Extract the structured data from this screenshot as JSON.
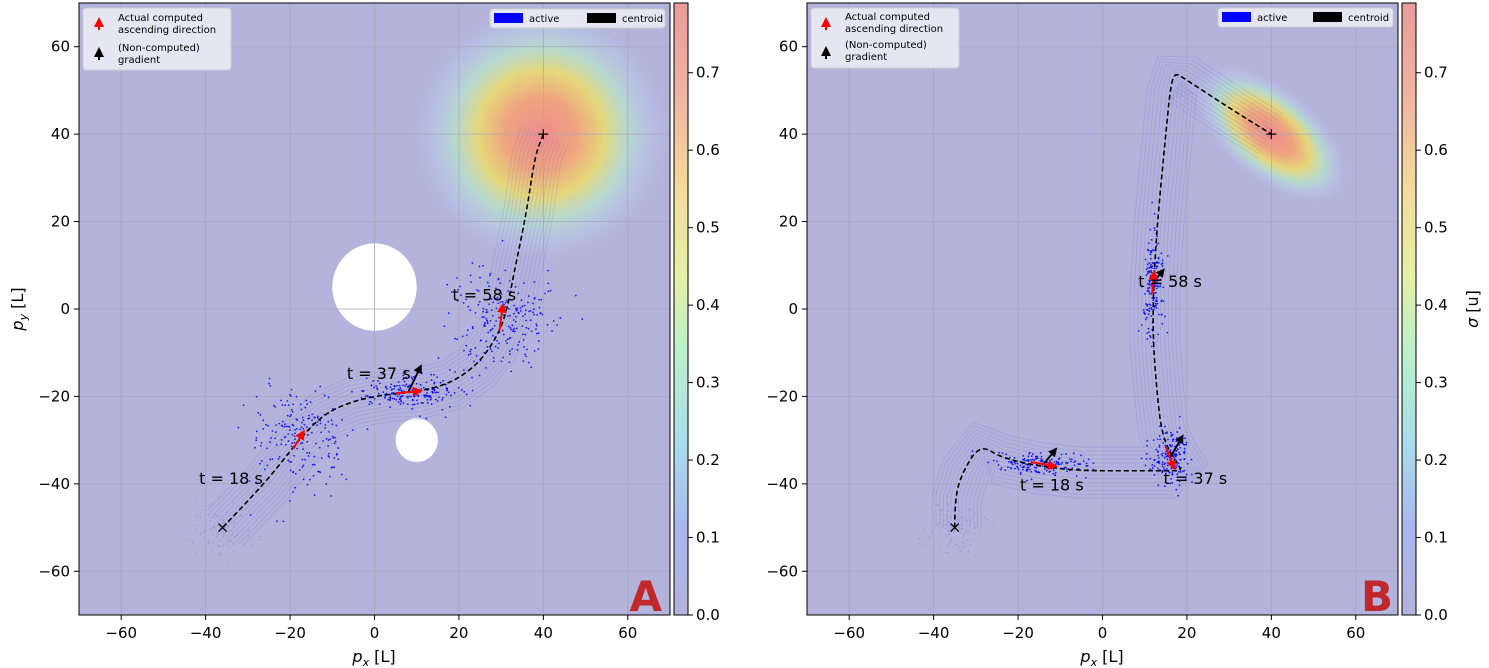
{
  "colors": {
    "background": "#b3b3dc",
    "active": "#0000ff",
    "centroid_path": "#000000",
    "computed_arrow": "#ff0000",
    "gradient_arrow": "#000000",
    "panel_letter": "#c0282b"
  },
  "legend_arrows": {
    "computed_label_line1": "Actual computed",
    "computed_label_line2": "ascending direction",
    "gradient_label_line1": "(Non-computed)",
    "gradient_label_line2": "gradient"
  },
  "legend_patches": {
    "active_label": "active",
    "centroid_label": "centroid"
  },
  "colorbar": {
    "label": "σ [u]",
    "ticks": [
      "0.0",
      "0.1",
      "0.2",
      "0.3",
      "0.4",
      "0.5",
      "0.6",
      "0.7"
    ],
    "min": 0.0,
    "max": 0.79
  },
  "axes": {
    "xlabel": "p_x [L]",
    "ylabel": "p_y [L]",
    "xlim": [
      -70,
      70
    ],
    "ylim": [
      -70,
      70
    ],
    "xticks": [
      -60,
      -40,
      -20,
      0,
      20,
      40,
      60
    ],
    "yticks": [
      -60,
      -40,
      -20,
      0,
      20,
      40,
      60
    ]
  },
  "chart_data": [
    {
      "type": "scatter",
      "panel_label": "A",
      "source": {
        "x": 40,
        "y": 40,
        "shape": "circular"
      },
      "start": {
        "x": -36,
        "y": -50
      },
      "obstacles": [
        {
          "x": 0,
          "y": 5,
          "r": 10
        },
        {
          "x": 10,
          "y": -30,
          "r": 5
        }
      ],
      "centroid_path": [
        [
          -36,
          -50
        ],
        [
          -26,
          -40
        ],
        [
          -18,
          -30
        ],
        [
          -12,
          -24
        ],
        [
          -5,
          -21
        ],
        [
          3,
          -19.5
        ],
        [
          10,
          -19
        ],
        [
          18,
          -17
        ],
        [
          24,
          -13
        ],
        [
          28,
          -8
        ],
        [
          31,
          -2
        ],
        [
          33,
          8
        ],
        [
          36,
          22
        ],
        [
          38,
          35
        ],
        [
          40,
          40
        ]
      ],
      "snapshots": [
        {
          "label": "t = 18 s",
          "cx": -18,
          "cy": -30,
          "sx": 6,
          "sy": 6,
          "n": 200,
          "arrow": [
            2.5,
            4
          ],
          "gradient": null
        },
        {
          "label": "t = 37 s",
          "cx": 8,
          "cy": -19,
          "sx": 6,
          "sy": 1.8,
          "n": 200,
          "arrow": [
            6,
            0.5
          ],
          "gradient": [
            3,
            6
          ]
        },
        {
          "label": "t = 58 s",
          "cx": 30,
          "cy": -2,
          "sx": 6,
          "sy": 6,
          "n": 230,
          "arrow": [
            0.8,
            6
          ],
          "gradient": null
        }
      ]
    },
    {
      "type": "scatter",
      "panel_label": "B",
      "source": {
        "x": 40,
        "y": 40,
        "shape": "elliptical"
      },
      "start": {
        "x": -35,
        "y": -50
      },
      "obstacles": [],
      "centroid_path": [
        [
          -35,
          -50
        ],
        [
          -35,
          -43
        ],
        [
          -33,
          -37
        ],
        [
          -29,
          -31
        ],
        [
          -24,
          -34
        ],
        [
          -15,
          -36
        ],
        [
          -5,
          -37
        ],
        [
          5,
          -37
        ],
        [
          12,
          -37
        ],
        [
          17,
          -37
        ],
        [
          19,
          -37
        ],
        [
          16,
          -33
        ],
        [
          14,
          -28
        ],
        [
          13,
          -20
        ],
        [
          12,
          -8
        ],
        [
          12,
          4
        ],
        [
          13,
          20
        ],
        [
          15,
          40
        ],
        [
          16,
          50
        ],
        [
          17,
          54
        ],
        [
          19,
          53
        ],
        [
          30,
          46
        ],
        [
          40,
          40
        ]
      ],
      "snapshots": [
        {
          "label": "t = 18 s",
          "cx": -14,
          "cy": -35.5,
          "sx": 6,
          "sy": 1.3,
          "n": 180,
          "arrow": [
            6,
            -1
          ],
          "gradient": [
            3,
            3.5
          ]
        },
        {
          "label": "t = 37 s",
          "cx": 16,
          "cy": -34,
          "sx": 2.5,
          "sy": 3,
          "n": 180,
          "arrow": [
            2,
            -5
          ],
          "gradient": [
            3,
            5
          ]
        },
        {
          "label": "t = 58 s",
          "cx": 12,
          "cy": 6,
          "sx": 1.3,
          "sy": 5.5,
          "n": 180,
          "arrow": [
            0.5,
            5
          ],
          "gradient": [
            2.5,
            3
          ]
        }
      ]
    }
  ]
}
